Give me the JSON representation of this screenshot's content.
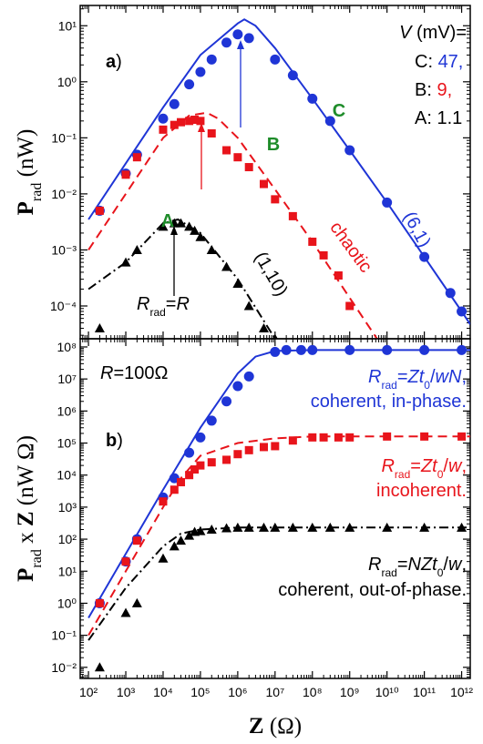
{
  "chart_data": [
    {
      "type": "scatter",
      "xscale": "log",
      "yscale": "log",
      "xlim": [
        60,
        1700000000000.0
      ],
      "ylim": [
        2.6e-05,
        23
      ],
      "xticks": [
        100.0,
        1000.0,
        10000.0,
        100000.0,
        1000000.0,
        10000000.0,
        100000000.0,
        1000000000.0,
        10000000000.0,
        100000000000.0,
        1000000000000.0
      ],
      "xticklabels": false,
      "yticks": [
        {
          "value": 0.0001,
          "label": "10⁻⁴"
        },
        {
          "value": 0.001,
          "label": "10⁻³"
        },
        {
          "value": 0.01,
          "label": "10⁻²"
        },
        {
          "value": 0.1,
          "label": "10⁻¹"
        },
        {
          "value": 1,
          "label": "10⁰"
        },
        {
          "value": 10,
          "label": "10¹"
        }
      ],
      "ylabel": [
        {
          "t": "P",
          "s": "b"
        },
        {
          "t": "rad",
          "s": "sub"
        },
        {
          "t": " (nW)"
        }
      ],
      "annotations": [
        {
          "segments": [
            {
              "t": "a",
              "s": "b"
            },
            {
              "t": ")"
            }
          ]
        },
        {
          "segments": [
            {
              "t": "V",
              "s": "i"
            },
            {
              "t": " (mV)="
            }
          ]
        },
        {
          "segments": [
            {
              "t": "C: "
            },
            {
              "t": "47,",
              "c": "#1f35d6"
            }
          ]
        },
        {
          "segments": [
            {
              "t": "B:  "
            },
            {
              "t": "9,",
              "c": "#e8141b"
            }
          ]
        },
        {
          "segments": [
            {
              "t": "A: 1.1"
            }
          ]
        },
        {
          "segments": [
            {
              "t": "C",
              "s": "b",
              "c": "#1e8c2a"
            }
          ]
        },
        {
          "segments": [
            {
              "t": "B",
              "s": "b",
              "c": "#1e8c2a"
            }
          ]
        },
        {
          "segments": [
            {
              "t": "A",
              "s": "b",
              "c": "#1e8c2a"
            }
          ]
        },
        {
          "segments": [
            {
              "t": "(6,1)",
              "c": "#1f35d6"
            }
          ]
        },
        {
          "segments": [
            {
              "t": "chaotic",
              "c": "#e8141b"
            }
          ]
        },
        {
          "segments": [
            {
              "t": "(1,10)"
            }
          ]
        },
        {
          "segments": [
            {
              "t": "R",
              "s": "i"
            },
            {
              "t": "rad",
              "s": "sub"
            },
            {
              "t": "="
            },
            {
              "t": "R",
              "s": "i"
            }
          ]
        }
      ],
      "series": [
        {
          "color": "#1f35d6",
          "line": "solid",
          "x": [
            100,
            1000.0,
            10000.0,
            100000.0,
            1000000.0,
            1500000.0,
            3000000.0,
            10000000.0,
            100000000.0,
            1000000000.0,
            10000000000.0,
            100000000000.0,
            1000000000000.0,
            1700000000000.0
          ],
          "values": [
            0.0035,
            0.035,
            0.35,
            3,
            11,
            13,
            10,
            4,
            0.5,
            0.06,
            0.007,
            0.00075,
            8e-05,
            4.7e-05
          ]
        },
        {
          "color": "#e8141b",
          "line": "dashed",
          "x": [
            100,
            1000.0,
            10000.0,
            50000.0,
            150000.0,
            300000.0,
            1000000.0,
            10000000.0,
            100000000.0,
            1000000000.0,
            10000000000.0
          ],
          "values": [
            0.001,
            0.01,
            0.1,
            0.25,
            0.28,
            0.22,
            0.1,
            0.012,
            0.0014,
            0.00014,
            1.4e-05
          ]
        },
        {
          "color": "#000000",
          "line": "dashdot",
          "x": [
            100,
            1000.0,
            10000.0,
            25000.0,
            100000.0,
            1000000.0,
            10000000.0
          ],
          "values": [
            0.0002,
            0.0006,
            0.003,
            0.0035,
            0.002,
            0.0003,
            2.6e-05
          ]
        },
        {
          "color": "#1f35d6",
          "marker": "circle",
          "x": [
            200,
            1000.0,
            2000.0,
            10000.0,
            20000.0,
            50000.0,
            100000.0,
            200000.0,
            500000.0,
            1000000.0,
            2000000.0,
            10000000.0,
            30000000.0,
            100000000.0,
            300000000.0,
            1000000000.0,
            10000000000.0,
            100000000000.0,
            500000000000.0,
            1000000000000.0
          ],
          "values": [
            0.005,
            0.023,
            0.05,
            0.22,
            0.4,
            0.9,
            1.5,
            2.5,
            5,
            7,
            6,
            2.5,
            1.3,
            0.5,
            0.2,
            0.06,
            0.007,
            0.00075,
            0.00017,
            8e-05
          ]
        },
        {
          "color": "#e8141b",
          "marker": "square",
          "x": [
            200,
            1000.0,
            2000.0,
            10000.0,
            20000.0,
            30000.0,
            50000.0,
            70000.0,
            100000.0,
            200000.0,
            500000.0,
            1000000.0,
            2000000.0,
            5000000.0,
            10000000.0,
            30000000.0,
            100000000.0,
            200000000.0,
            500000000.0,
            1000000000.0
          ],
          "values": [
            0.005,
            0.022,
            0.045,
            0.14,
            0.17,
            0.19,
            0.2,
            0.21,
            0.2,
            0.12,
            0.06,
            0.045,
            0.03,
            0.015,
            0.008,
            0.004,
            0.0014,
            0.0008,
            0.00035,
            0.0001
          ]
        },
        {
          "color": "#000000",
          "marker": "triangle",
          "x": [
            200,
            1000.0,
            2000.0,
            10000.0,
            20000.0,
            30000.0,
            50000.0,
            70000.0,
            100000.0,
            200000.0,
            500000.0,
            1000000.0,
            2000000.0,
            5000000.0,
            10000000.0
          ],
          "values": [
            4e-05,
            0.0006,
            0.001,
            0.0026,
            0.003,
            0.003,
            0.0026,
            0.0022,
            0.0017,
            0.001,
            0.0005,
            0.00025,
            0.0001,
            4e-05,
            2.6e-05
          ]
        }
      ]
    },
    {
      "type": "scatter",
      "xscale": "log",
      "yscale": "log",
      "xlim": [
        60,
        1700000000000.0
      ],
      "ylim": [
        0.0045,
        180000000.0
      ],
      "xticks": [
        {
          "value": 100.0,
          "label": "10²"
        },
        {
          "value": 1000.0,
          "label": "10³"
        },
        {
          "value": 10000.0,
          "label": "10⁴"
        },
        {
          "value": 100000.0,
          "label": "10⁵"
        },
        {
          "value": 1000000.0,
          "label": "10⁶"
        },
        {
          "value": 10000000.0,
          "label": "10⁷"
        },
        {
          "value": 100000000.0,
          "label": "10⁸"
        },
        {
          "value": 1000000000.0,
          "label": "10⁹"
        },
        {
          "value": 10000000000.0,
          "label": "10¹⁰"
        },
        {
          "value": 100000000000.0,
          "label": "10¹¹"
        },
        {
          "value": 1000000000000.0,
          "label": "10¹²"
        }
      ],
      "xticklabels": true,
      "yticks": [
        {
          "value": 0.01,
          "label": "10⁻²"
        },
        {
          "value": 0.1,
          "label": "10⁻¹"
        },
        {
          "value": 1,
          "label": "10⁰"
        },
        {
          "value": 10,
          "label": "10¹"
        },
        {
          "value": 100.0,
          "label": "10²"
        },
        {
          "value": 1000.0,
          "label": "10³"
        },
        {
          "value": 10000.0,
          "label": "10⁴"
        },
        {
          "value": 100000.0,
          "label": "10⁵"
        },
        {
          "value": 1000000.0,
          "label": "10⁶"
        },
        {
          "value": 10000000.0,
          "label": "10⁷"
        },
        {
          "value": 100000000.0,
          "label": "10⁸"
        }
      ],
      "xlabel": [
        {
          "t": "Z",
          "s": "b"
        },
        {
          "t": " (Ω)"
        }
      ],
      "ylabel": [
        {
          "t": "P",
          "s": "b"
        },
        {
          "t": "rad",
          "s": "sub"
        },
        {
          "t": " x "
        },
        {
          "t": "Z",
          "s": "b"
        },
        {
          "t": "  (nW Ω)"
        }
      ],
      "annotations": [
        {
          "segments": [
            {
              "t": "R",
              "s": "i"
            },
            {
              "t": "=100Ω"
            }
          ]
        },
        {
          "segments": [
            {
              "t": "b",
              "s": "b"
            },
            {
              "t": ")"
            }
          ]
        },
        {
          "segments": [
            {
              "t": "R",
              "s": "i",
              "c": "#1f35d6"
            },
            {
              "t": "rad",
              "s": "sub",
              "c": "#1f35d6"
            },
            {
              "t": "=",
              "c": "#1f35d6"
            },
            {
              "t": "Zt",
              "s": "i",
              "c": "#1f35d6"
            },
            {
              "t": "0",
              "s": "sub",
              "c": "#1f35d6"
            },
            {
              "t": "/",
              "c": "#1f35d6"
            },
            {
              "t": "wN",
              "s": "i",
              "c": "#1f35d6"
            },
            {
              "t": ",",
              "c": "#1f35d6"
            }
          ]
        },
        {
          "segments": [
            {
              "t": "coherent, in-phase.",
              "c": "#1f35d6"
            }
          ]
        },
        {
          "segments": [
            {
              "t": "R",
              "s": "i",
              "c": "#e8141b"
            },
            {
              "t": "rad",
              "s": "sub",
              "c": "#e8141b"
            },
            {
              "t": "=",
              "c": "#e8141b"
            },
            {
              "t": "Zt",
              "s": "i",
              "c": "#e8141b"
            },
            {
              "t": "0",
              "s": "sub",
              "c": "#e8141b"
            },
            {
              "t": "/",
              "c": "#e8141b"
            },
            {
              "t": "w",
              "s": "i",
              "c": "#e8141b"
            },
            {
              "t": ",",
              "c": "#e8141b"
            }
          ]
        },
        {
          "segments": [
            {
              "t": "incoherent.",
              "c": "#e8141b"
            }
          ]
        },
        {
          "segments": [
            {
              "t": "R",
              "s": "i"
            },
            {
              "t": "rad",
              "s": "sub"
            },
            {
              "t": "="
            },
            {
              "t": "NZt",
              "s": "i"
            },
            {
              "t": "0",
              "s": "sub"
            },
            {
              "t": "/"
            },
            {
              "t": "w",
              "s": "i"
            },
            {
              "t": ","
            }
          ]
        },
        {
          "segments": [
            {
              "t": "coherent, out-of-phase."
            }
          ]
        }
      ],
      "series": [
        {
          "color": "#1f35d6",
          "line": "solid",
          "x": [
            100,
            1000.0,
            10000.0,
            100000.0,
            1000000.0,
            3000000.0,
            10000000.0,
            100000000.0,
            1700000000000.0
          ],
          "values": [
            0.35,
            35,
            3500.0,
            300000.0,
            15000000.0,
            50000000.0,
            75000000.0,
            80000000.0,
            80000000.0
          ]
        },
        {
          "color": "#e8141b",
          "line": "dashed",
          "x": [
            100,
            1000.0,
            10000.0,
            30000.0,
            100000.0,
            1000000.0,
            10000000.0,
            100000000.0,
            1700000000000.0
          ],
          "values": [
            0.1,
            10,
            1000.0,
            8000.0,
            40000.0,
            100000.0,
            140000.0,
            160000.0,
            160000.0
          ]
        },
        {
          "color": "#000000",
          "line": "dashdot",
          "x": [
            100,
            1000.0,
            10000.0,
            30000.0,
            100000.0,
            1000000.0,
            1700000000000.0
          ],
          "values": [
            0.07,
            3,
            60,
            150,
            200,
            230,
            230
          ]
        },
        {
          "color": "#1f35d6",
          "marker": "circle",
          "x": [
            200,
            1000.0,
            2000.0,
            10000.0,
            20000.0,
            50000.0,
            100000.0,
            200000.0,
            500000.0,
            1000000.0,
            2000000.0,
            10000000.0,
            20000000.0,
            50000000.0,
            100000000.0,
            1000000000.0,
            10000000000.0,
            100000000000.0,
            1000000000000.0
          ],
          "values": [
            1,
            20,
            100,
            2000.0,
            8000.0,
            50000.0,
            150000.0,
            500000.0,
            2000000.0,
            6000000.0,
            12000000.0,
            70000000.0,
            80000000.0,
            80000000.0,
            80000000.0,
            80000000.0,
            80000000.0,
            80000000.0,
            80000000.0
          ]
        },
        {
          "color": "#e8141b",
          "marker": "square",
          "x": [
            200,
            1000.0,
            2000.0,
            10000.0,
            20000.0,
            30000.0,
            50000.0,
            70000.0,
            100000.0,
            200000.0,
            500000.0,
            1000000.0,
            2000000.0,
            5000000.0,
            10000000.0,
            30000000.0,
            100000000.0,
            200000000.0,
            500000000.0,
            1000000000.0,
            10000000000.0,
            100000000000.0,
            1000000000000.0
          ],
          "values": [
            1,
            20,
            90,
            1500.0,
            3500.0,
            6000.0,
            10000.0,
            15000.0,
            20000.0,
            25000.0,
            30000.0,
            45000.0,
            60000.0,
            75000.0,
            80000.0,
            120000.0,
            150000.0,
            150000.0,
            150000.0,
            150000.0,
            160000.0,
            160000.0,
            160000.0
          ]
        },
        {
          "color": "#000000",
          "marker": "triangle",
          "x": [
            200,
            1000.0,
            2000.0,
            10000.0,
            20000.0,
            30000.0,
            50000.0,
            70000.0,
            100000.0,
            200000.0,
            500000.0,
            1000000.0,
            2000000.0,
            5000000.0,
            10000000.0,
            30000000.0,
            100000000.0,
            300000000.0,
            1000000000.0,
            10000000000.0,
            100000000000.0,
            1000000000000.0
          ],
          "values": [
            0.01,
            0.5,
            1,
            25,
            60,
            90,
            130,
            170,
            180,
            200,
            220,
            230,
            230,
            230,
            230,
            230,
            230,
            230,
            230,
            230,
            230,
            230
          ]
        }
      ]
    }
  ]
}
